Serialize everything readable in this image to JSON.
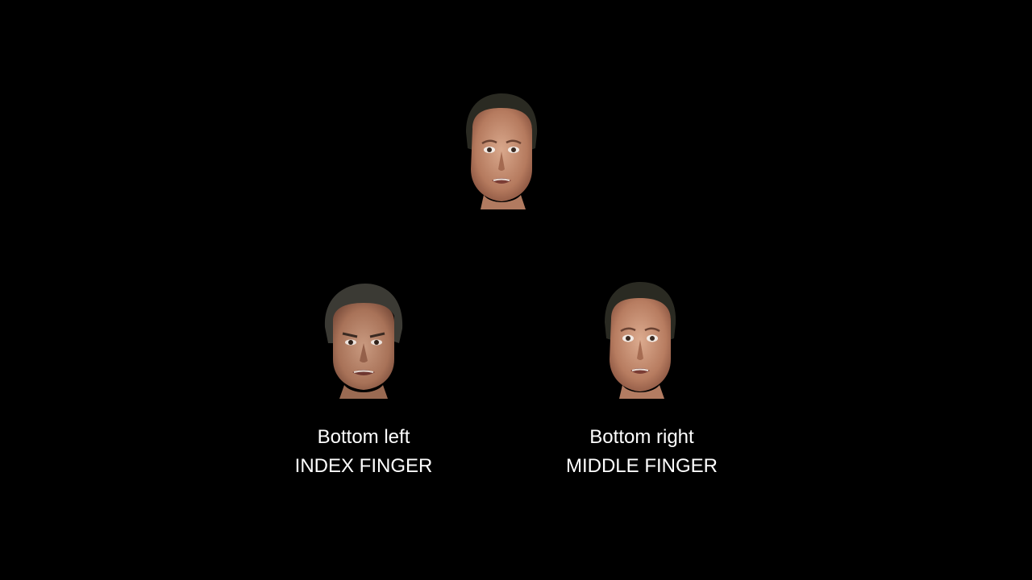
{
  "background_color": "#000000",
  "faces": [
    {
      "position": "top",
      "icon": "face-photo",
      "expression": "fearful"
    },
    {
      "position": "bottom-left",
      "icon": "face-photo",
      "expression": "angry"
    },
    {
      "position": "bottom-right",
      "icon": "face-photo",
      "expression": "fearful"
    }
  ],
  "choices": {
    "left": {
      "line1": "Bottom left",
      "line2": "INDEX FINGER"
    },
    "right": {
      "line1": "Bottom right",
      "line2": "MIDDLE FINGER"
    }
  }
}
